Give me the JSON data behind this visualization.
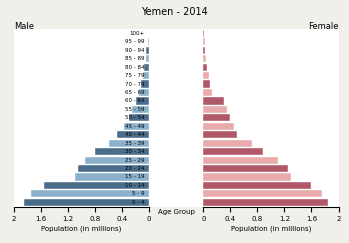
{
  "title": "Yemen - 2014",
  "age_groups": [
    "0 - 4",
    "5 - 9",
    "10 - 14",
    "15 - 19",
    "20 - 24",
    "25 - 29",
    "30 - 34",
    "35 - 39",
    "40 - 44",
    "45 - 49",
    "50 - 54",
    "55 - 59",
    "60 - 64",
    "65 - 69",
    "70 - 74",
    "75 - 79",
    "80 - 84",
    "85 - 89",
    "90 - 94",
    "95 - 99",
    "100+"
  ],
  "male": [
    1.85,
    1.75,
    1.55,
    1.1,
    1.05,
    0.95,
    0.8,
    0.6,
    0.48,
    0.38,
    0.3,
    0.25,
    0.2,
    0.15,
    0.12,
    0.09,
    0.07,
    0.05,
    0.04,
    0.02,
    0.01
  ],
  "female": [
    1.85,
    1.75,
    1.6,
    1.3,
    1.25,
    1.1,
    0.88,
    0.72,
    0.5,
    0.45,
    0.4,
    0.35,
    0.3,
    0.13,
    0.1,
    0.08,
    0.06,
    0.04,
    0.03,
    0.02,
    0.01
  ],
  "dark_blue": "#4a6d8c",
  "light_blue": "#8ab0cc",
  "dark_red": "#b05868",
  "light_red": "#e8aaaa",
  "xlim": 2.0,
  "xticks": [
    0,
    0.4,
    0.8,
    1.2,
    1.6,
    2.0
  ],
  "xlabel_left": "Population (in millions)",
  "xlabel_center": "Age Group",
  "xlabel_right": "Population (in millions)",
  "label_male": "Male",
  "label_female": "Female",
  "bar_height": 0.85,
  "background_color": "#f0efea",
  "plot_bg": "#ffffff",
  "title_fontsize": 7,
  "tick_fontsize": 5,
  "age_label_fontsize": 4,
  "xlabel_fontsize": 5
}
